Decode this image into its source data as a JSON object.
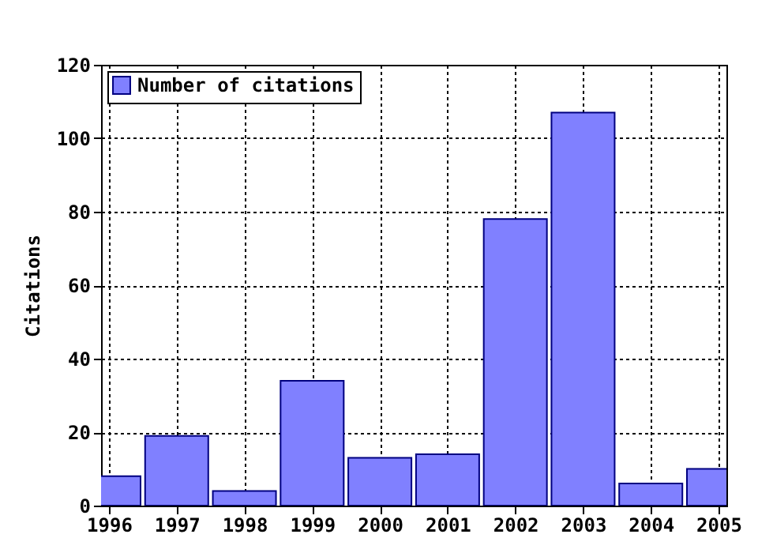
{
  "chart_data": {
    "type": "bar",
    "ylabel": "Citations",
    "x": [
      1996,
      1997,
      1998,
      1999,
      2000,
      2001,
      2002,
      2003,
      2004,
      2005
    ],
    "series": [
      {
        "name": "Number of citations",
        "color": "#8080ff",
        "values": [
          8,
          19,
          4,
          34,
          13,
          14,
          78,
          107,
          6,
          10
        ]
      }
    ],
    "xlim": [
      1996,
      2005
    ],
    "xticks": [
      1996,
      1997,
      1998,
      1999,
      2000,
      2001,
      2002,
      2003,
      2004,
      2005
    ],
    "ylim": [
      0,
      120
    ],
    "yticks": [
      0,
      20,
      40,
      60,
      80,
      100,
      120
    ],
    "grid": true,
    "legend": "top left"
  }
}
